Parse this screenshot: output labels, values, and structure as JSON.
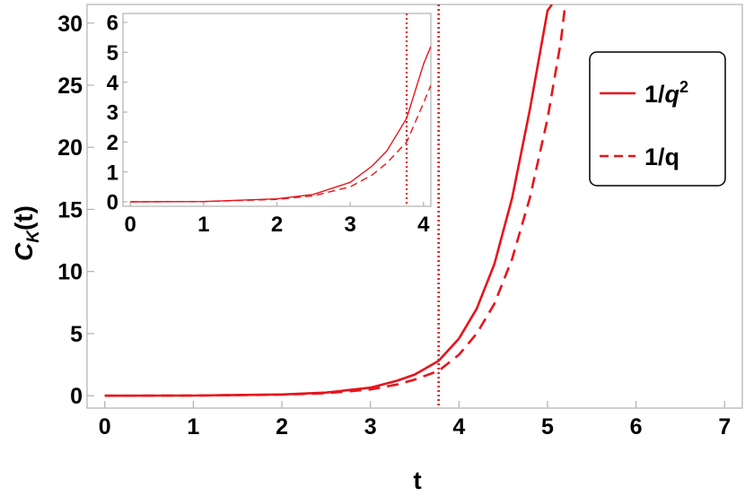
{
  "chart_data": [
    {
      "type": "line",
      "id": "main",
      "xlabel": "t",
      "ylabel_base": "C",
      "ylabel_sub": "K",
      "ylabel_tail": "(t)",
      "xlim": [
        -0.2,
        7.2
      ],
      "ylim": [
        -1,
        31.5
      ],
      "xticks": [
        0,
        1,
        2,
        3,
        4,
        5,
        6,
        7
      ],
      "yticks": [
        0,
        5,
        10,
        15,
        20,
        25,
        30
      ],
      "vline": 3.77,
      "grid": false,
      "legend": {
        "placement": "right",
        "entries": [
          {
            "label_base": "1/",
            "label_var": "q",
            "label_sup": "2",
            "style": "solid"
          },
          {
            "label_base": "1/q",
            "label_var": "",
            "label_sup": "",
            "style": "dashed"
          }
        ]
      },
      "series": [
        {
          "style": "solid",
          "x": [
            0,
            1,
            2,
            2.5,
            3,
            3.3,
            3.5,
            3.77,
            4.0,
            4.2,
            4.4,
            4.6,
            4.8,
            5.0,
            5.05
          ],
          "y": [
            0,
            0.01,
            0.1,
            0.25,
            0.65,
            1.2,
            1.7,
            2.8,
            4.6,
            7.0,
            10.6,
            15.9,
            23.0,
            31.0,
            31.5
          ]
        },
        {
          "style": "dashed",
          "x": [
            0,
            1,
            2,
            2.5,
            3,
            3.3,
            3.5,
            3.77,
            4.0,
            4.2,
            4.4,
            4.6,
            4.8,
            5.0,
            5.15,
            5.2
          ],
          "y": [
            0,
            0.01,
            0.08,
            0.2,
            0.5,
            0.9,
            1.3,
            2.0,
            3.3,
            5.0,
            7.4,
            11.0,
            15.9,
            22.3,
            28.5,
            31.5
          ]
        }
      ]
    },
    {
      "type": "line",
      "id": "inset",
      "xlim": [
        -0.1,
        4.1
      ],
      "ylim": [
        -0.15,
        6.3
      ],
      "xticks": [
        0,
        1,
        2,
        3,
        4
      ],
      "yticks": [
        0,
        1,
        2,
        3,
        4,
        5,
        6
      ],
      "vline": 3.77,
      "series": [
        {
          "style": "solid",
          "x": [
            0,
            1,
            2,
            2.5,
            3,
            3.3,
            3.5,
            3.77,
            4.0,
            4.1
          ],
          "y": [
            0,
            0.01,
            0.1,
            0.25,
            0.65,
            1.2,
            1.7,
            2.8,
            4.6,
            5.2
          ]
        },
        {
          "style": "dashed",
          "x": [
            0,
            1,
            2,
            2.5,
            3,
            3.3,
            3.5,
            3.77,
            4.0,
            4.1
          ],
          "y": [
            0,
            0.01,
            0.08,
            0.2,
            0.5,
            0.9,
            1.3,
            2.0,
            3.3,
            3.9
          ]
        }
      ]
    }
  ],
  "colors": {
    "line": "#e8141b",
    "frame": "#b0b0b0",
    "text": "#000000"
  }
}
